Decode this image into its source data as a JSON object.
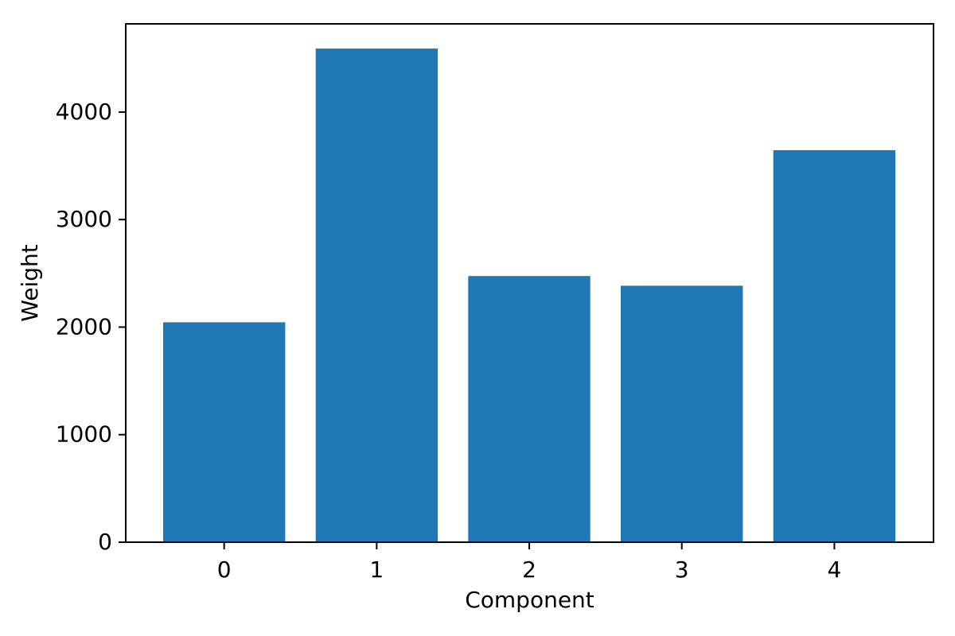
{
  "chart_data": {
    "type": "bar",
    "title": "",
    "xlabel": "Component",
    "ylabel": "Weight",
    "categories": [
      "0",
      "1",
      "2",
      "3",
      "4"
    ],
    "values": [
      2045,
      4590,
      2475,
      2385,
      3645
    ],
    "yticks": [
      0,
      1000,
      2000,
      3000,
      4000
    ],
    "ylim": [
      0,
      4820
    ],
    "xlim": [
      -0.645,
      4.65
    ],
    "bar_width": 0.8,
    "bar_color": "#1f77b4",
    "spine_color": "#000000",
    "background_color": "#ffffff",
    "grid": "off",
    "legend": "none"
  }
}
